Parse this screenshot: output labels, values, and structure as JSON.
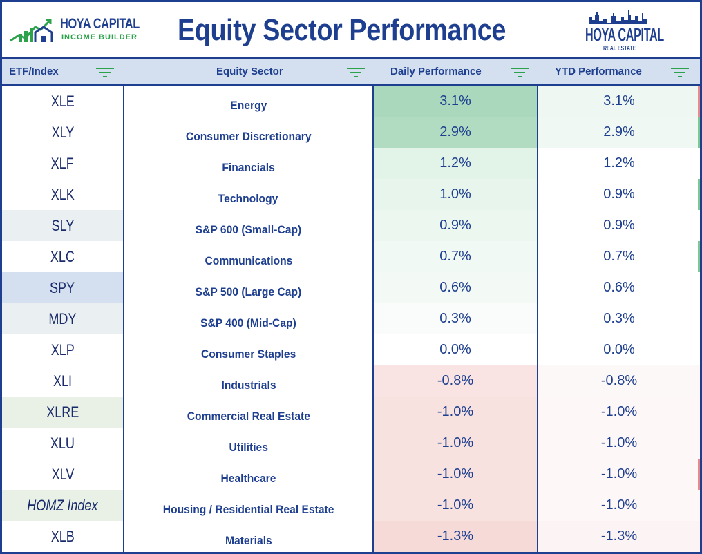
{
  "header": {
    "logo_left_line1": "HOYA CAPITAL",
    "logo_left_line2": "INCOME BUILDER",
    "title": "Equity Sector Performance",
    "logo_right_line1": "HOYA CAPITAL",
    "logo_right_line2": "REAL ESTATE"
  },
  "columns": {
    "etf": "ETF/Index",
    "sector": "Equity Sector",
    "daily": "Daily Performance",
    "ytd": "YTD Performance"
  },
  "colors": {
    "brand_blue": "#1e3f8f",
    "brand_green": "#2ca24a",
    "header_bg": "#d4dfef"
  },
  "rows": [
    {
      "etf": "XLE",
      "sector": "Energy",
      "daily": "3.1%",
      "ytd": "3.1%",
      "italic": false,
      "etf_bg": "#ffffff",
      "daily_bg": "#a9d8bc",
      "ytd_bg": "#eef7f1"
    },
    {
      "etf": "XLY",
      "sector": "Consumer Discretionary",
      "daily": "2.9%",
      "ytd": "2.9%",
      "italic": false,
      "etf_bg": "#ffffff",
      "daily_bg": "#b1dcc2",
      "ytd_bg": "#f0f8f3"
    },
    {
      "etf": "XLF",
      "sector": "Financials",
      "daily": "1.2%",
      "ytd": "1.2%",
      "italic": false,
      "etf_bg": "#ffffff",
      "daily_bg": "#e2f3e8",
      "ytd_bg": "#ffffff"
    },
    {
      "etf": "XLK",
      "sector": "Technology",
      "daily": "1.0%",
      "ytd": "0.9%",
      "italic": false,
      "etf_bg": "#ffffff",
      "daily_bg": "#e8f5ec",
      "ytd_bg": "#ffffff"
    },
    {
      "etf": "SLY",
      "sector": "S&P 600 (Small-Cap)",
      "daily": "0.9%",
      "ytd": "0.9%",
      "italic": false,
      "etf_bg": "#eaeff1",
      "daily_bg": "#ecf7ef",
      "ytd_bg": "#ffffff"
    },
    {
      "etf": "XLC",
      "sector": "Communications",
      "daily": "0.7%",
      "ytd": "0.7%",
      "italic": false,
      "etf_bg": "#ffffff",
      "daily_bg": "#f1f9f4",
      "ytd_bg": "#ffffff"
    },
    {
      "etf": "SPY",
      "sector": "S&P 500 (Large Cap)",
      "daily": "0.6%",
      "ytd": "0.6%",
      "italic": false,
      "etf_bg": "#d4dfef",
      "daily_bg": "#f3faf5",
      "ytd_bg": "#ffffff"
    },
    {
      "etf": "MDY",
      "sector": "S&P 400 (Mid-Cap)",
      "daily": "0.3%",
      "ytd": "0.3%",
      "italic": false,
      "etf_bg": "#eaeff1",
      "daily_bg": "#f9fcfa",
      "ytd_bg": "#ffffff"
    },
    {
      "etf": "XLP",
      "sector": "Consumer Staples",
      "daily": "0.0%",
      "ytd": "0.0%",
      "italic": false,
      "etf_bg": "#ffffff",
      "daily_bg": "#ffffff",
      "ytd_bg": "#ffffff"
    },
    {
      "etf": "XLI",
      "sector": "Industrials",
      "daily": "-0.8%",
      "ytd": "-0.8%",
      "italic": false,
      "etf_bg": "#ffffff",
      "daily_bg": "#f9e4e3",
      "ytd_bg": "#fdf8f8"
    },
    {
      "etf": "XLRE",
      "sector": "Commercial Real Estate",
      "daily": "-1.0%",
      "ytd": "-1.0%",
      "italic": false,
      "etf_bg": "#e9f0e6",
      "daily_bg": "#f8e2e0",
      "ytd_bg": "#fdf7f7"
    },
    {
      "etf": "XLU",
      "sector": "Utilities",
      "daily": "-1.0%",
      "ytd": "-1.0%",
      "italic": false,
      "etf_bg": "#ffffff",
      "daily_bg": "#f8e2e0",
      "ytd_bg": "#fdf7f7"
    },
    {
      "etf": "XLV",
      "sector": "Healthcare",
      "daily": "-1.0%",
      "ytd": "-1.0%",
      "italic": false,
      "etf_bg": "#ffffff",
      "daily_bg": "#f8e2e0",
      "ytd_bg": "#fdf7f7"
    },
    {
      "etf": "HOMZ Index",
      "sector": "Housing / Residential Real Estate",
      "daily": "-1.0%",
      "ytd": "-1.0%",
      "italic": true,
      "etf_bg": "#e9f0e6",
      "daily_bg": "#f8e2e0",
      "ytd_bg": "#fdf7f7"
    },
    {
      "etf": "XLB",
      "sector": "Materials",
      "daily": "-1.3%",
      "ytd": "-1.3%",
      "italic": false,
      "etf_bg": "#ffffff",
      "daily_bg": "#f5dad8",
      "ytd_bg": "#fcf4f4"
    }
  ]
}
